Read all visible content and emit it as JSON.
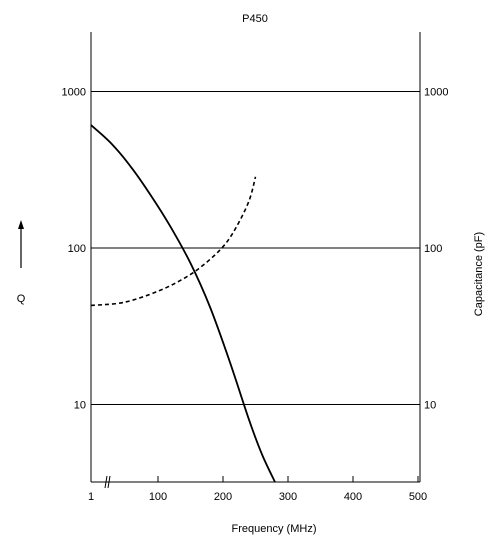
{
  "chart_data": {
    "type": "line",
    "title": "P450",
    "xlabel": "Frequency (MHz)",
    "ylabel_left": "Q",
    "ylabel_right": "Capacitance (pF)",
    "y_scale": "log",
    "ylim": [
      3.2,
      2400
    ],
    "y_ticks": [
      10,
      100,
      1000
    ],
    "y_tick_labels": [
      "10",
      "100",
      "1000"
    ],
    "x_tick_labels": [
      "1",
      "100",
      "200",
      "300",
      "400",
      "500"
    ],
    "x_tick_values": [
      1,
      100,
      200,
      300,
      400,
      500
    ],
    "x_axis_break": true,
    "grid": "horizontal",
    "series": [
      {
        "style": "solid",
        "x": [
          1,
          30,
          60,
          90,
          120,
          150,
          180,
          210,
          240,
          260,
          280
        ],
        "y": [
          610,
          470,
          330,
          215,
          135,
          80,
          42,
          19,
          8,
          4.8,
          3.2
        ]
      },
      {
        "style": "dashed",
        "x": [
          1,
          50,
          100,
          140,
          170,
          200,
          220,
          240,
          250
        ],
        "y": [
          43,
          45,
          53,
          64,
          78,
          102,
          135,
          200,
          285
        ]
      }
    ]
  }
}
